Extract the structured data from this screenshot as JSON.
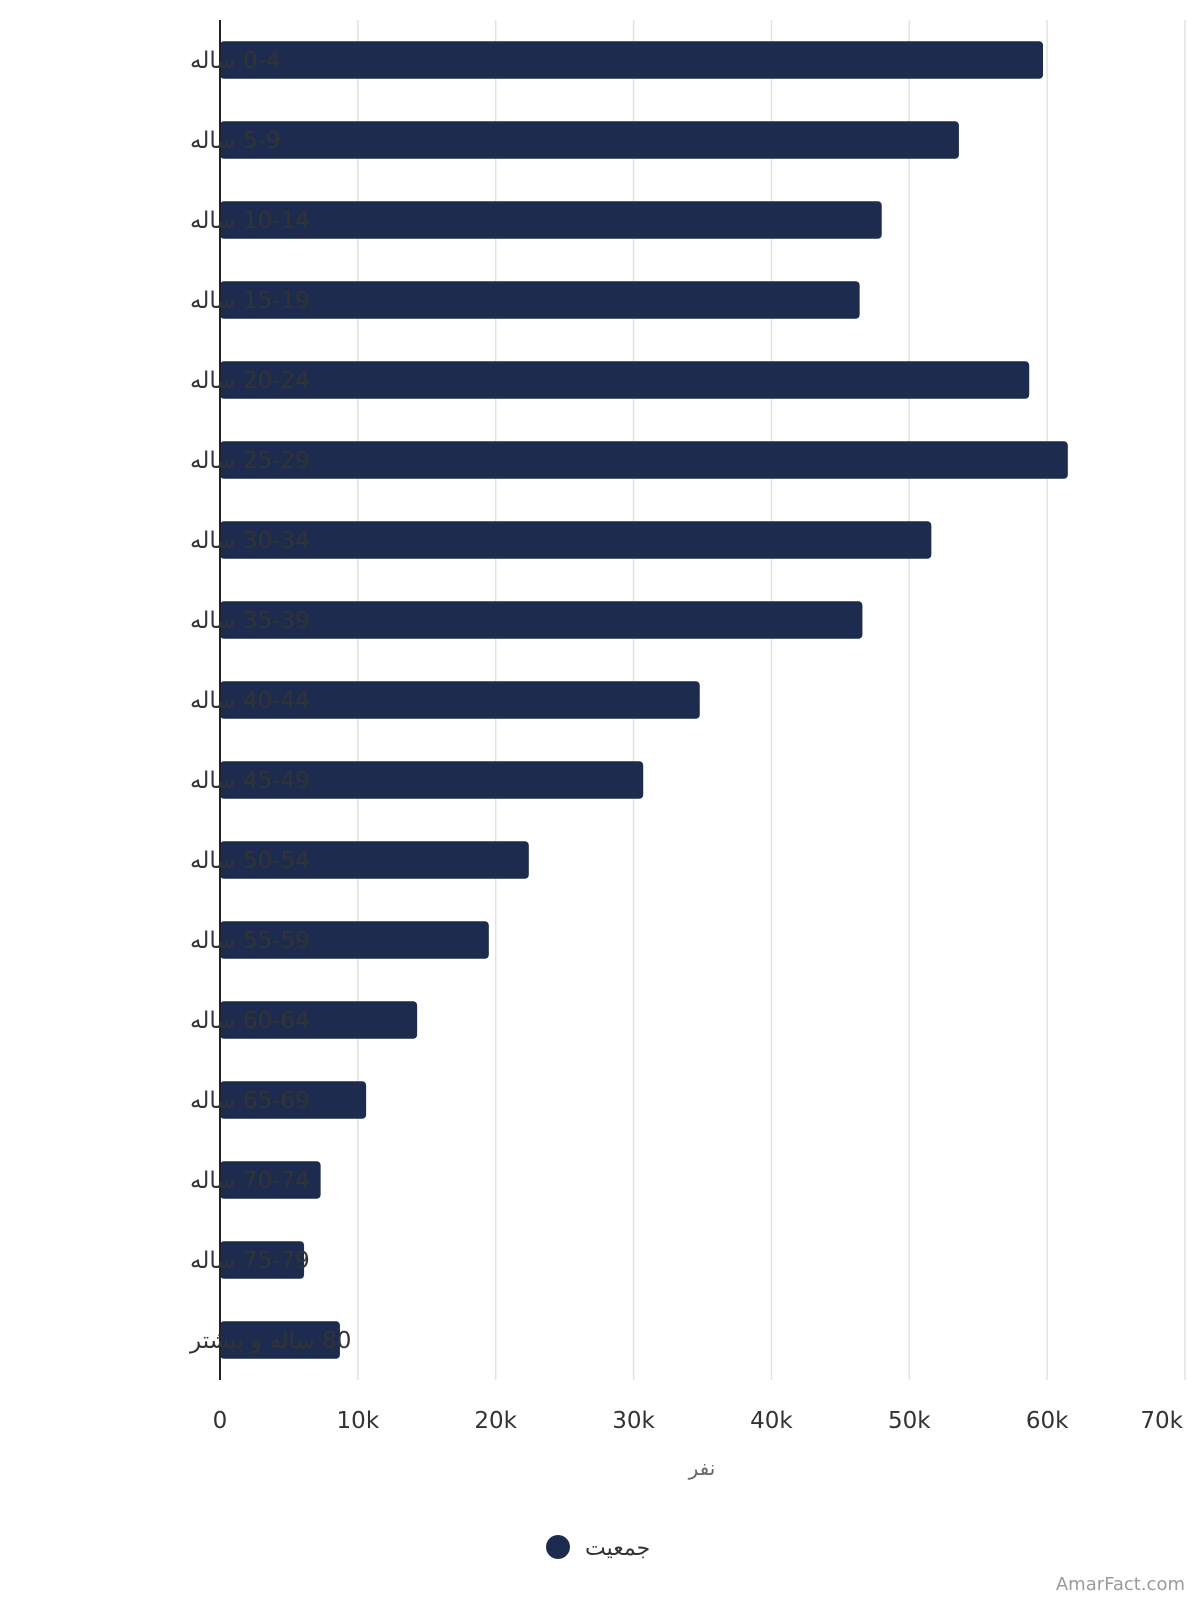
{
  "chart_data": {
    "type": "bar",
    "orientation": "horizontal",
    "categories": [
      "0-4 ساله",
      "5-9 ساله",
      "10-14 ساله",
      "15-19 ساله",
      "20-24 ساله",
      "25-29 ساله",
      "30-34 ساله",
      "35-39 ساله",
      "40-44 ساله",
      "45-49 ساله",
      "50-54 ساله",
      "55-59 ساله",
      "60-64 ساله",
      "65-69 ساله",
      "70-74 ساله",
      "75-79 ساله",
      "80 ساله و بیشتر"
    ],
    "series": [
      {
        "name": "جمعیت",
        "color": "#1c2b4e",
        "values": [
          59700,
          53600,
          48000,
          46400,
          58700,
          61500,
          51600,
          46600,
          34800,
          30700,
          22400,
          19500,
          14300,
          10600,
          7300,
          6100,
          8700
        ]
      }
    ],
    "xlabel": "نفر",
    "ylabel": "",
    "xlim": [
      0,
      70000
    ],
    "xticks": [
      0,
      10000,
      20000,
      30000,
      40000,
      50000,
      60000,
      70000
    ],
    "xtick_labels": [
      "0",
      "10k",
      "20k",
      "30k",
      "40k",
      "50k",
      "60k",
      "70k"
    ],
    "grid": "vertical",
    "legend_position": "bottom"
  },
  "watermark": "AmarFact.com",
  "colors": {
    "bar": "#1c2b4e",
    "grid": "#e3e3e3",
    "axis": "#222222"
  }
}
